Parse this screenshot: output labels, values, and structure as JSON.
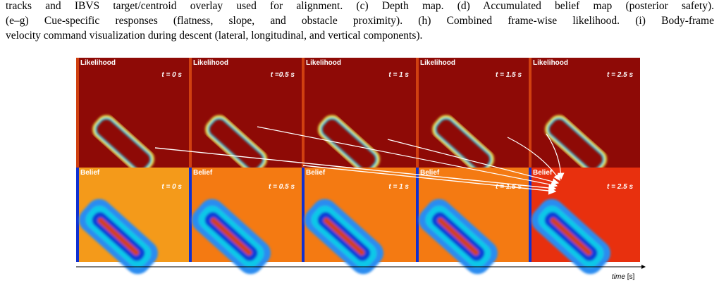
{
  "caption": {
    "lines": [
      "tracks and IBVS target/centroid overlay used for alignment. (c) Depth map. (d) Accumulated belief map (posterior safety).",
      "(e–g) Cue-specific responses (flatness, slope, and obstacle proximity). (h) Combined frame-wise likelihood. (i) Body-frame",
      "velocity command visualization during descent (lateral, longitudinal, and vertical components)."
    ]
  },
  "figure": {
    "top": [
      {
        "label": "Likelihood",
        "time": "t = 0 s"
      },
      {
        "label": "Likelihood",
        "time": "t =0.5 s"
      },
      {
        "label": "Likelihood",
        "time": "t = 1 s"
      },
      {
        "label": "Likelihood",
        "time": "t = 1.5 s"
      },
      {
        "label": "Likelihood",
        "time": "t = 2.5 s"
      }
    ],
    "bottom": [
      {
        "label": "Belief",
        "time": "t = 0 s"
      },
      {
        "label": "Belief",
        "time": "t = 0.5 s"
      },
      {
        "label": "Belief",
        "time": "t = 1 s"
      },
      {
        "label": "Belief",
        "time": "t = 1.5 s"
      },
      {
        "label": "Belief",
        "time": "t = 2.5 s"
      }
    ],
    "axis": {
      "name": "time",
      "unit": "[s]"
    }
  }
}
